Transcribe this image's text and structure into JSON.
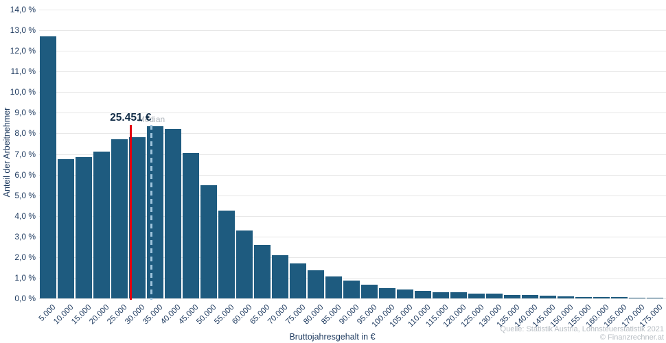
{
  "chart_data": {
    "type": "bar",
    "title": "",
    "xlabel": "Bruttojahresgehalt in €",
    "ylabel": "Anteil der Arbeitnehmer",
    "ylim": [
      0,
      14
    ],
    "ytick_step": 1.0,
    "grid": true,
    "legend": "none",
    "bar_color": "#1e5b7f",
    "ytick_labels": [
      "0,0 %",
      "1,0 %",
      "2,0 %",
      "3,0 %",
      "4,0 %",
      "5,0 %",
      "6,0 %",
      "7,0 %",
      "8,0 %",
      "9,0 %",
      "10,0 %",
      "11,0 %",
      "12,0 %",
      "13,0 %",
      "14,0 %"
    ],
    "categories": [
      "5.000",
      "10.000",
      "15.000",
      "20.000",
      "25.000",
      "30.000",
      "35.000",
      "40.000",
      "45.000",
      "50.000",
      "55.000",
      "60.000",
      "65.000",
      "70.000",
      "75.000",
      "80.000",
      "85.000",
      "90.000",
      "95.000",
      "100.000",
      "105.000",
      "110.000",
      "115.000",
      "120.000",
      "125.000",
      "130.000",
      "135.000",
      "140.000",
      "145.000",
      "150.000",
      "155.000",
      "160.000",
      "165.000",
      "170.000",
      "175.000"
    ],
    "values": [
      12.7,
      6.75,
      6.85,
      7.1,
      7.7,
      7.8,
      8.35,
      8.2,
      7.05,
      5.5,
      4.25,
      3.3,
      2.6,
      2.1,
      1.7,
      1.35,
      1.05,
      0.85,
      0.65,
      0.5,
      0.42,
      0.38,
      0.31,
      0.3,
      0.24,
      0.22,
      0.18,
      0.15,
      0.12,
      0.1,
      0.08,
      0.07,
      0.05,
      0.04,
      0.03
    ],
    "bin_width": 5000,
    "markers": [
      {
        "name": "median",
        "label": "Median",
        "x_value": 31250,
        "style": "dashed",
        "line_color": "#9fc4dc",
        "label_color": "#b0b6bc",
        "emphasis": false
      },
      {
        "name": "highlight-salary",
        "label": "25.451 €",
        "x_value": 25451,
        "style": "solid",
        "line_color": "#e3000f",
        "label_color": "#132e48",
        "emphasis": true
      }
    ]
  },
  "source": {
    "line1": "Quelle: Statistik Austria, Lohnsteuerstatistik 2021",
    "line2": "© Finanzrechner.at"
  },
  "colors": {
    "axis_text": "#1e3a5f",
    "grid_line": "#e7e7e7",
    "background": "#ffffff"
  }
}
